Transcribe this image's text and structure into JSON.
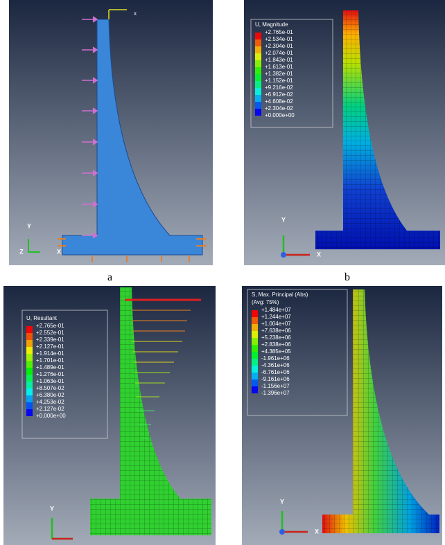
{
  "panels": [
    {
      "label": "a",
      "top_axis": "x",
      "triad": [
        "Y",
        "Z",
        "X"
      ]
    },
    {
      "label": "b",
      "legend": {
        "title": "U, Magnitude",
        "values": [
          "+2.765e-01",
          "+2.534e-01",
          "+2.304e-01",
          "+2.074e-01",
          "+1.843e-01",
          "+1.613e-01",
          "+1.382e-01",
          "+1.152e-01",
          "+9.216e-02",
          "+6.912e-02",
          "+4.608e-02",
          "+2.304e-02",
          "+0.000e+00"
        ]
      },
      "triad": [
        "Y",
        "X"
      ]
    },
    {
      "legend": {
        "title": "U, Resultant",
        "values": [
          "+2.765e-01",
          "+2.552e-01",
          "+2.339e-01",
          "+2.127e-01",
          "+1.914e-01",
          "+1.701e-01",
          "+1.489e-01",
          "+1.276e-01",
          "+1.063e-01",
          "+8.507e-02",
          "+6.380e-02",
          "+4.253e-02",
          "+2.127e-02",
          "+0.000e+00"
        ]
      },
      "triad": [
        "Y"
      ]
    },
    {
      "legend": {
        "title": "S, Max. Principal (Abs)",
        "subtitle": "(Avg: 75%)",
        "values": [
          "+1.484e+07",
          "+1.244e+07",
          "+1.004e+07",
          "+7.638e+06",
          "+5.238e+06",
          "+2.838e+06",
          "+4.385e+05",
          "-1.961e+06",
          "-4.361e+06",
          "-6.761e+06",
          "-9.161e+06",
          "-1.156e+07",
          "-1.396e+07"
        ]
      },
      "triad": [
        "Y",
        "X"
      ]
    }
  ]
}
